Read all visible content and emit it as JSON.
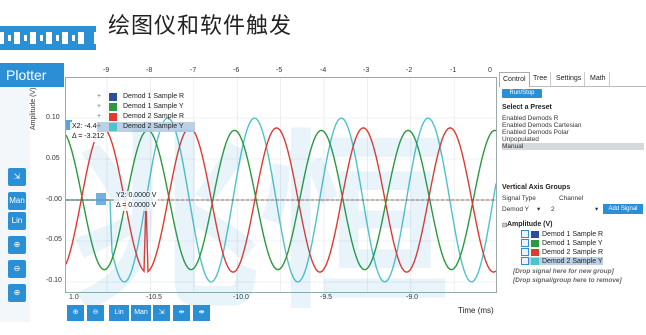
{
  "header": {
    "title": "绘图仪和软件触发",
    "logo": "zurich-instruments-logo"
  },
  "plotter_tab": "Plotter",
  "left_tools": [
    "Man",
    "Lin"
  ],
  "plot": {
    "y_label": "Amplitude (V)",
    "time_label": "Time (ms)",
    "top_ticks": [
      "-9",
      "-8",
      "-7",
      "-6",
      "-5",
      "-4",
      "-3",
      "-2",
      "-1",
      "0"
    ],
    "y_ticks": [
      "0.10",
      "0.05",
      "-0.00",
      "-0.05",
      "-0.10"
    ],
    "bottom_ticks": [
      "1.0",
      "-10.5",
      "-10.0",
      "-9.5",
      "-9.0"
    ],
    "cursor_x2": "X2: -4.40/",
    "cursor_dx": "Δ = -3.212",
    "cursor_y2": "Y2: 0.0000 V",
    "cursor_dy": "Δ = 0.0000 V",
    "legend": [
      {
        "label": "Demod 1 Sample R",
        "color": "#2a4f9e"
      },
      {
        "label": "Demod 1 Sample Y",
        "color": "#2a9a3e"
      },
      {
        "label": "Demod 2 Sample R",
        "color": "#e03a30"
      },
      {
        "label": "Demod 2 Sample Y",
        "color": "#4fc3c8"
      }
    ]
  },
  "bottom_tools": [
    "Lin",
    "Man"
  ],
  "right_panel": {
    "tabs": [
      "Control",
      "Tree",
      "Settings",
      "Math"
    ],
    "run_stop": "Run/Stop",
    "select_preset": "Select a Preset",
    "presets": [
      "Enabled Demods R",
      "Enabled Demods Cartesian",
      "Enabled Demods Polar",
      "Unpopulated",
      "Manual"
    ],
    "vag_title": "Vertical Axis Groups",
    "signal_type_label": "Signal Type",
    "channel_label": "Channel",
    "signal_type_value": "Demod Y",
    "channel_value": "2",
    "add_signal": "Add Signal",
    "amplitude_group": "Amplitude (V)",
    "signals": [
      {
        "label": "Demod 1 Sample R",
        "color": "#2a4f9e"
      },
      {
        "label": "Demod 1 Sample Y",
        "color": "#2a9a3e"
      },
      {
        "label": "Demod 2 Sample R",
        "color": "#e03a30"
      },
      {
        "label": "Demod 2 Sample Y",
        "color": "#4fc3c8"
      }
    ],
    "drop_new_group": "[Drop signal here for new group]",
    "drop_remove": "[Drop signal/group here to remove]"
  },
  "watermark": "兆恒",
  "accent": "#2b8fd6"
}
